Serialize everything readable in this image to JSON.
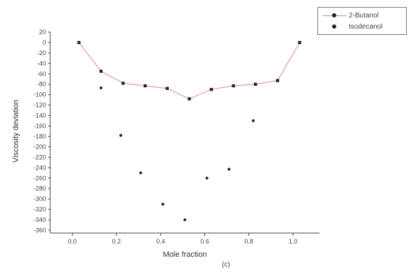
{
  "chart_data": {
    "type": "scatter",
    "xlabel": "Mole fraction",
    "ylabel": "Viscosity deviation",
    "xlim": [
      -0.1,
      1.12
    ],
    "ylim": [
      -360,
      20
    ],
    "xticks": [
      "0.0",
      "0.2",
      "0.4",
      "0.6",
      "0.8",
      "1.0"
    ],
    "yticks": [
      "20",
      "0",
      "-20",
      "-40",
      "-60",
      "-80",
      "-100",
      "-120",
      "-140",
      "-160",
      "-180",
      "-200",
      "-220",
      "-240",
      "-260",
      "-280",
      "-300",
      "-320",
      "-340",
      "-360"
    ],
    "legend_position": "top-right",
    "panel_label": "(c)",
    "series": [
      {
        "name": "2-Butanol",
        "marker": "square",
        "line": true,
        "color": "#222222",
        "line_color": "#dd8888",
        "x": [
          0.03,
          0.13,
          0.23,
          0.33,
          0.43,
          0.53,
          0.63,
          0.73,
          0.83,
          0.93,
          1.03
        ],
        "y": [
          0,
          -55,
          -78,
          -83,
          -88,
          -108,
          -90,
          -83,
          -80,
          -73,
          0
        ]
      },
      {
        "name": "Isodecanol",
        "marker": "circle",
        "line": false,
        "color": "#222222",
        "x": [
          0.13,
          0.22,
          0.31,
          0.41,
          0.51,
          0.61,
          0.71,
          0.82,
          0.93
        ],
        "y": [
          -87,
          -178,
          -250,
          -310,
          -340,
          -260,
          -243,
          -150,
          -73
        ]
      }
    ]
  }
}
